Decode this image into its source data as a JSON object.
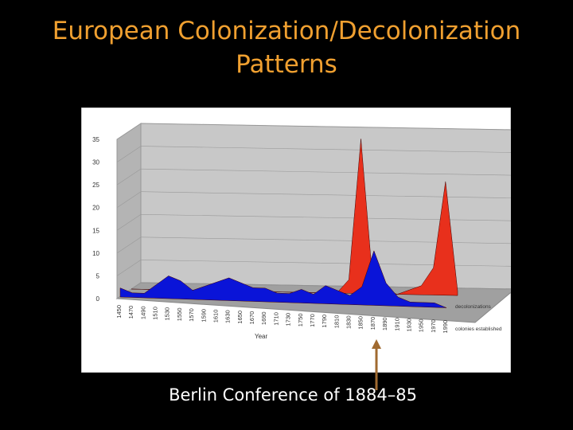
{
  "chart_data": {
    "type": "area",
    "title": "European Colonization/Decolonization Patterns",
    "x_label": "Year",
    "categories": [
      "1450",
      "1470",
      "1490",
      "1510",
      "1530",
      "1550",
      "1570",
      "1590",
      "1610",
      "1630",
      "1650",
      "1670",
      "1690",
      "1710",
      "1730",
      "1750",
      "1770",
      "1790",
      "1810",
      "1830",
      "1850",
      "1870",
      "1890",
      "1910",
      "1930",
      "1950",
      "1970",
      "1990"
    ],
    "series": [
      {
        "name": "decolonizations",
        "color": "#e8301c",
        "values": [
          0,
          0,
          0,
          0,
          0,
          0,
          0,
          0,
          0,
          0,
          0,
          0,
          0,
          0,
          0,
          0,
          0,
          0,
          3,
          34,
          2,
          1,
          0,
          1,
          2,
          6,
          25,
          1
        ]
      },
      {
        "name": "colonies established",
        "color": "#0a14d8",
        "values": [
          2,
          1,
          1,
          3,
          5,
          4,
          2,
          3,
          4,
          5,
          4,
          3,
          3,
          2,
          2,
          3,
          2,
          4,
          3,
          2,
          4,
          12,
          5,
          2,
          1,
          1,
          1,
          0
        ]
      }
    ],
    "ylim": [
      0,
      35
    ],
    "yticks": [
      0,
      5,
      10,
      15,
      20,
      25,
      30,
      35
    ],
    "grid": true,
    "annotation": "Berlin Conference of 1884–85"
  }
}
